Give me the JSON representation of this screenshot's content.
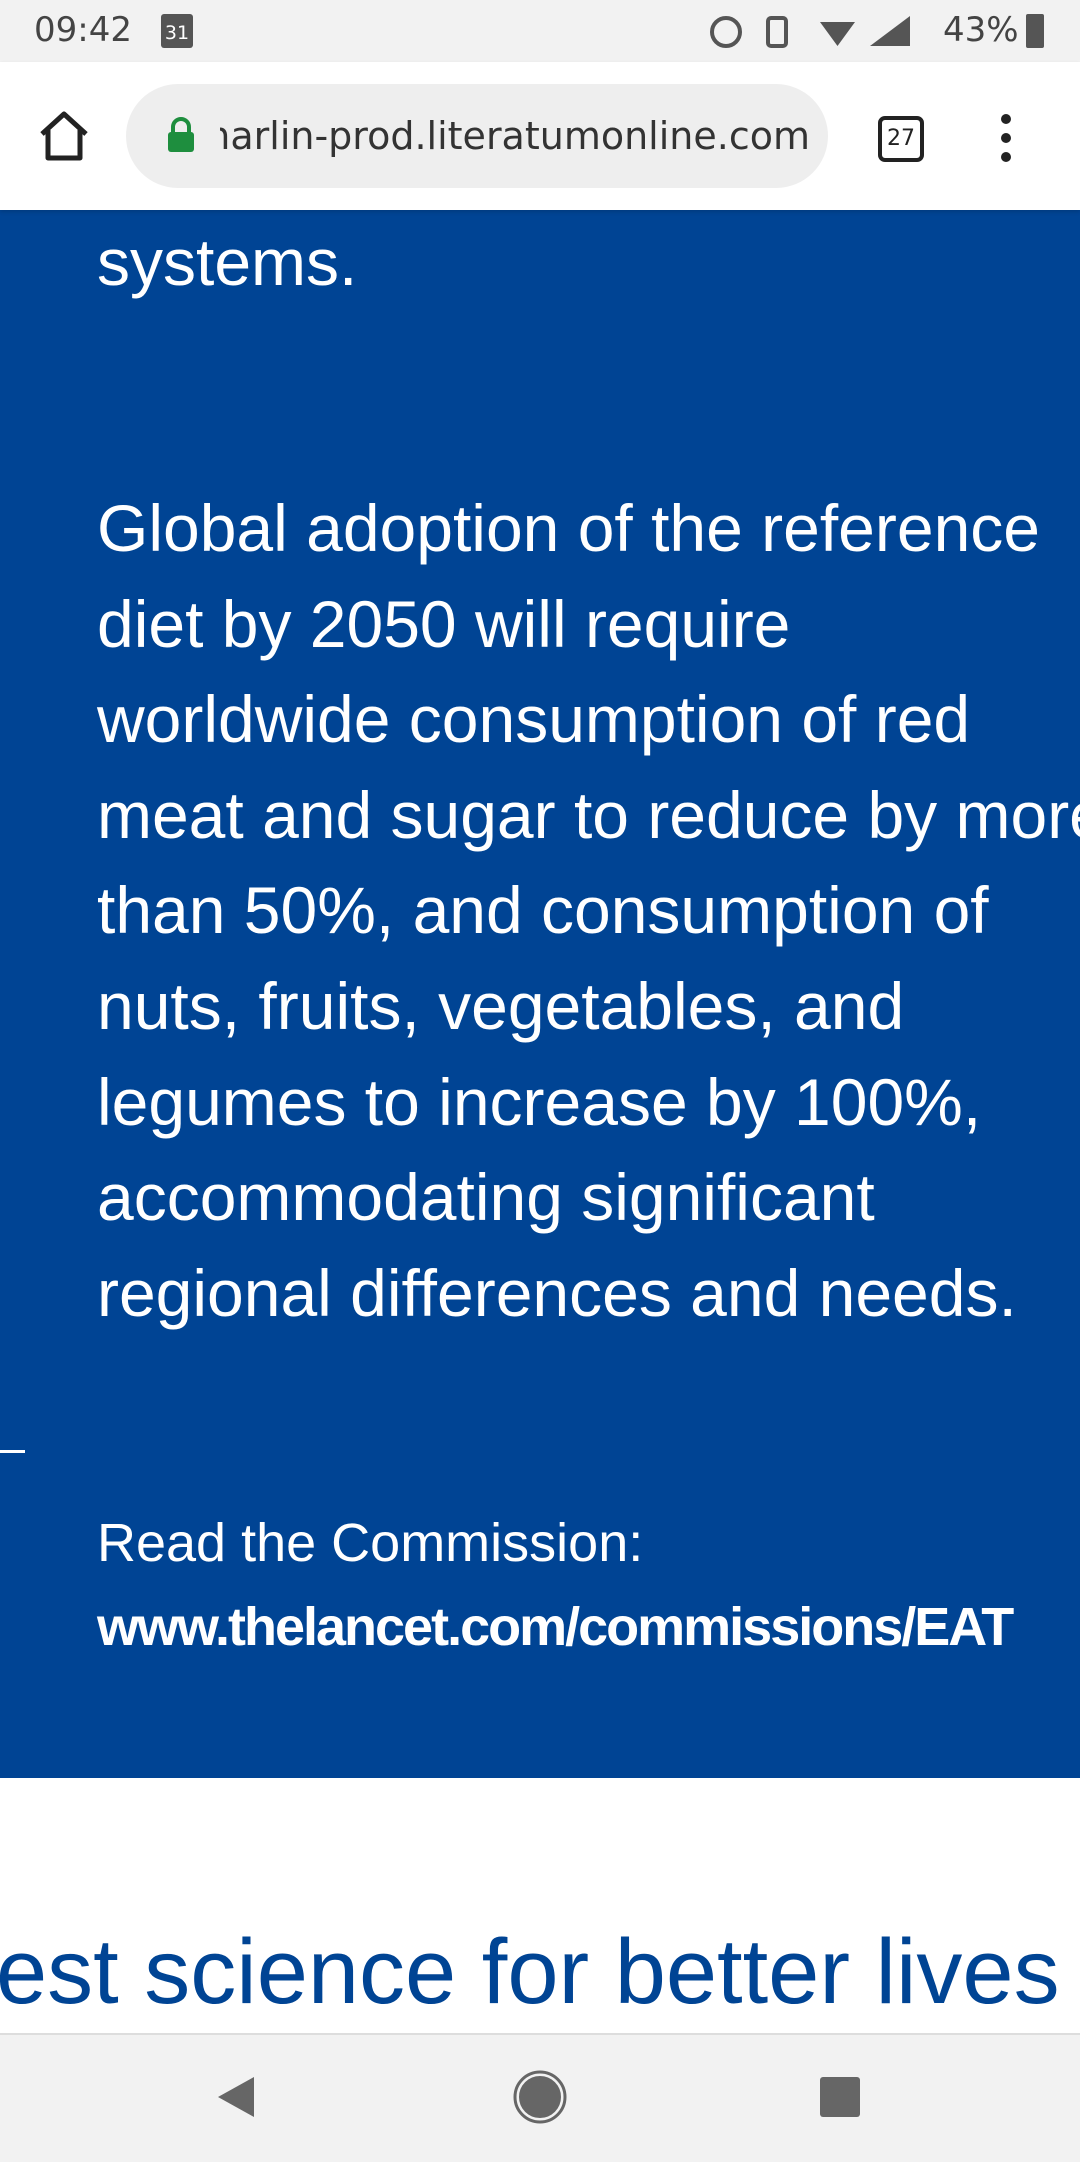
{
  "status_bar": {
    "time": "09:42",
    "date_icon": "31",
    "battery": "43%"
  },
  "browser": {
    "url": "narlin-prod.literatumonline.com",
    "tab_count": "27"
  },
  "content": {
    "paragraph_end": "systems.",
    "paragraph_lines": [
      "Global adoption of the reference",
      "diet by 2050 will require",
      "worldwide consumption of red",
      "meat and sugar to reduce by more",
      "than 50%, and consumption of",
      "nuts, fruits, vegetables, and",
      "legumes to increase by 100%,",
      "accommodating significant",
      "regional differences and needs."
    ],
    "read_label": "Read the Commission:",
    "link": "www.thelancet.com/commissions/EAT"
  },
  "tagline": "est science for better lives"
}
